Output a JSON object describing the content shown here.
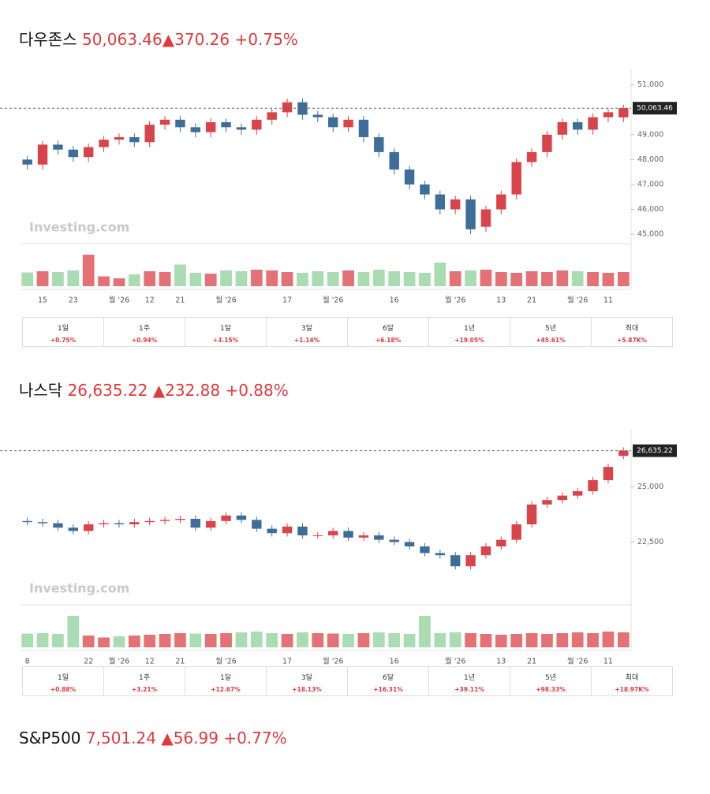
{
  "chart_data": [
    {
      "type": "candlestick",
      "title": "다우존스",
      "change": "▲370.26",
      "change_pct": "+0.75%",
      "last": {
        "value": 50063.46,
        "label": "50,063.46"
      },
      "up_color": "#d9434a",
      "down_color": "#3f6d99",
      "volume_up_color": "#e37175",
      "volume_down_color": "#a9dcb1",
      "watermark": "Investing.com",
      "ylim": [
        44750,
        51400
      ],
      "yticks": [
        {
          "value": 45000,
          "label": "45,000"
        },
        {
          "value": 46000,
          "label": "46,000"
        },
        {
          "value": 47000,
          "label": "47,000"
        },
        {
          "value": 48000,
          "label": "48,000"
        },
        {
          "value": 49000,
          "label": "49,000"
        },
        {
          "value": 51000,
          "label": "51,000"
        }
      ],
      "categories": [
        null,
        "15",
        null,
        "23",
        null,
        null,
        "월 '26",
        null,
        "12",
        null,
        "21",
        null,
        null,
        "월 '26",
        null,
        null,
        null,
        "17",
        null,
        null,
        "월 '26",
        null,
        null,
        null,
        "16",
        null,
        null,
        null,
        "월 '26",
        null,
        null,
        "13",
        null,
        "21",
        null,
        null,
        "월 '26",
        null,
        "11",
        null
      ],
      "open": [
        48000,
        47800,
        48600,
        48400,
        48100,
        48500,
        48800,
        48900,
        48700,
        49400,
        49600,
        49300,
        49100,
        49500,
        49300,
        49200,
        49600,
        49900,
        50300,
        49800,
        49700,
        49300,
        49600,
        48900,
        48300,
        47600,
        47000,
        46600,
        46000,
        46400,
        45300,
        46000,
        46600,
        47900,
        48300,
        49000,
        49500,
        49200,
        49700,
        49693.2
      ],
      "high": [
        48150,
        48750,
        48750,
        48550,
        48650,
        48950,
        49050,
        49050,
        49550,
        49750,
        49750,
        49450,
        49650,
        49650,
        49450,
        49750,
        50050,
        50450,
        50450,
        49950,
        49850,
        49750,
        49750,
        49050,
        48450,
        47750,
        47150,
        46750,
        46550,
        46550,
        46150,
        46750,
        48050,
        48450,
        49150,
        49650,
        49650,
        49850,
        50050,
        50200
      ],
      "low": [
        47600,
        47600,
        48200,
        47900,
        47900,
        48300,
        48600,
        48500,
        48500,
        49200,
        49100,
        48900,
        48900,
        49100,
        49000,
        49000,
        49400,
        49700,
        49600,
        49500,
        49100,
        49100,
        48700,
        48100,
        47400,
        46800,
        46400,
        45800,
        45800,
        45000,
        45100,
        45800,
        46400,
        47700,
        48100,
        48800,
        49000,
        49000,
        49500,
        49500
      ],
      "close": [
        47800,
        48600,
        48400,
        48100,
        48500,
        48800,
        48900,
        48700,
        49400,
        49600,
        49300,
        49100,
        49500,
        49300,
        49200,
        49600,
        49900,
        50300,
        49800,
        49700,
        49300,
        49600,
        48900,
        48300,
        47600,
        47000,
        46600,
        46000,
        46400,
        45200,
        46000,
        46600,
        47900,
        48300,
        49000,
        49500,
        49200,
        49700,
        49900,
        50063.46
      ],
      "volume_ylim": [
        0,
        100
      ],
      "volume": [
        35,
        38,
        36,
        40,
        80,
        25,
        20,
        30,
        38,
        36,
        55,
        34,
        32,
        40,
        38,
        42,
        40,
        36,
        34,
        38,
        36,
        40,
        36,
        42,
        38,
        36,
        34,
        60,
        38,
        40,
        42,
        36,
        34,
        38,
        36,
        40,
        38,
        36,
        34,
        36
      ],
      "periods": [
        {
          "label": "1일",
          "change": "+0.75%"
        },
        {
          "label": "1주",
          "change": "+0.94%"
        },
        {
          "label": "1달",
          "change": "+3.15%"
        },
        {
          "label": "3달",
          "change": "+1.14%"
        },
        {
          "label": "6달",
          "change": "+6.18%"
        },
        {
          "label": "1년",
          "change": "+19.05%"
        },
        {
          "label": "5년",
          "change": "+45.61%"
        },
        {
          "label": "최대",
          "change": "+5.87K%"
        }
      ]
    },
    {
      "type": "candlestick",
      "title": "나스닥",
      "change": "▲232.88",
      "change_pct": "+0.88%",
      "last": {
        "value": 26635.22,
        "label": "26,635.22"
      },
      "up_color": "#d9434a",
      "down_color": "#3f6d99",
      "volume_up_color": "#e37175",
      "volume_down_color": "#a9dcb1",
      "watermark": "Investing.com",
      "ylim": [
        19800,
        27300
      ],
      "yticks": [
        {
          "value": 22500,
          "label": "22,500"
        },
        {
          "value": 25000,
          "label": "25,000"
        }
      ],
      "categories": [
        "8",
        null,
        null,
        null,
        "22",
        null,
        "월 '26",
        null,
        "12",
        null,
        "21",
        null,
        null,
        "월 '26",
        null,
        null,
        null,
        "17",
        null,
        null,
        "월 '26",
        null,
        null,
        null,
        "16",
        null,
        null,
        null,
        "월 '26",
        null,
        null,
        "13",
        null,
        "21",
        null,
        null,
        "월 '26",
        null,
        "11",
        null
      ],
      "open": [
        23450,
        23400,
        23350,
        23150,
        23000,
        23300,
        23350,
        23300,
        23400,
        23450,
        23500,
        23550,
        23150,
        23450,
        23700,
        23500,
        23100,
        22900,
        23200,
        22800,
        22800,
        23000,
        22700,
        22800,
        22600,
        22500,
        22300,
        22000,
        21900,
        21400,
        21900,
        22300,
        22600,
        23300,
        24200,
        24400,
        24600,
        24800,
        25300,
        26402.34
      ],
      "high": [
        23600,
        23550,
        23500,
        23300,
        23450,
        23500,
        23500,
        23550,
        23600,
        23650,
        23700,
        23700,
        23600,
        23850,
        23850,
        23650,
        23250,
        23350,
        23350,
        22950,
        23150,
        23150,
        22950,
        22950,
        22750,
        22650,
        22450,
        22150,
        22050,
        22050,
        22450,
        22750,
        23450,
        24350,
        24550,
        24750,
        24950,
        25450,
        26050,
        26785.22
      ],
      "low": [
        23250,
        23200,
        23000,
        22850,
        22850,
        23150,
        23150,
        23150,
        23250,
        23300,
        23350,
        23000,
        23000,
        23300,
        23350,
        22950,
        22750,
        22750,
        22650,
        22650,
        22650,
        22550,
        22550,
        22450,
        22350,
        22150,
        21850,
        21750,
        21250,
        21250,
        21750,
        22150,
        22450,
        23150,
        24050,
        24250,
        24450,
        24650,
        25150,
        26252.34
      ],
      "close": [
        23400,
        23350,
        23150,
        23000,
        23300,
        23350,
        23300,
        23400,
        23450,
        23500,
        23550,
        23150,
        23450,
        23700,
        23500,
        23100,
        22900,
        23200,
        22800,
        22800,
        23000,
        22700,
        22800,
        22600,
        22500,
        22300,
        22000,
        21900,
        21400,
        21900,
        22300,
        22600,
        23300,
        24200,
        24400,
        24600,
        24800,
        25300,
        25900,
        26635.22
      ],
      "volume_ylim": [
        0,
        100
      ],
      "volume": [
        35,
        36,
        34,
        80,
        30,
        25,
        28,
        30,
        32,
        34,
        36,
        35,
        34,
        36,
        38,
        40,
        36,
        34,
        38,
        36,
        35,
        34,
        36,
        38,
        36,
        34,
        80,
        36,
        38,
        36,
        34,
        32,
        34,
        36,
        34,
        36,
        38,
        36,
        40,
        38
      ],
      "periods": [
        {
          "label": "1일",
          "change": "+0.88%"
        },
        {
          "label": "1주",
          "change": "+3.21%"
        },
        {
          "label": "1달",
          "change": "+12.67%"
        },
        {
          "label": "3달",
          "change": "+18.13%"
        },
        {
          "label": "6달",
          "change": "+16.31%"
        },
        {
          "label": "1년",
          "change": "+39.11%"
        },
        {
          "label": "5년",
          "change": "+98.33%"
        },
        {
          "label": "최대",
          "change": "+18.97K%"
        }
      ]
    }
  ],
  "headline": {
    "title": "S&P500",
    "price": "7,501.24",
    "change": "▲56.99",
    "change_pct": "+0.77%"
  }
}
